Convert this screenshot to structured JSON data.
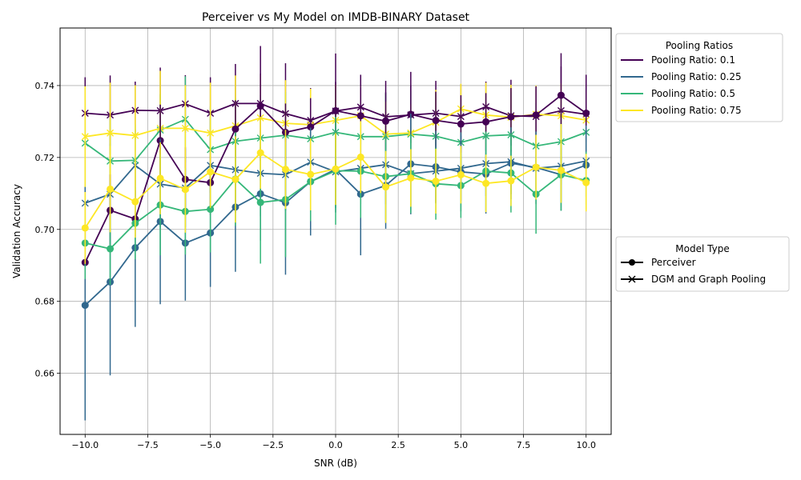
{
  "chart_data": {
    "type": "line",
    "title": "Perceiver vs My Model on IMDB-BINARY Dataset",
    "xlabel": "SNR (dB)",
    "ylabel": "Validation Accuracy",
    "xlim": [
      -11.0,
      11.0
    ],
    "ylim": [
      0.643,
      0.756
    ],
    "xticks": [
      -10,
      -7.5,
      -5,
      -2.5,
      0,
      2.5,
      5,
      7.5,
      10
    ],
    "xtick_labels": [
      "−10.0",
      "−7.5",
      "−5.0",
      "−2.5",
      "0.0",
      "2.5",
      "5.0",
      "7.5",
      "10.0"
    ],
    "yticks": [
      0.66,
      0.68,
      0.7,
      0.72,
      0.74
    ],
    "ytick_labels": [
      "0.66",
      "0.68",
      "0.70",
      "0.72",
      "0.74"
    ],
    "grid": true,
    "x": [
      -10,
      -9,
      -8,
      -7,
      -6,
      -5,
      -4,
      -3,
      -2,
      -1,
      0,
      1,
      2,
      3,
      4,
      5,
      6,
      7,
      8,
      9,
      10
    ],
    "colors": {
      "0.1": "#440154",
      "0.25": "#31688e",
      "0.5": "#35b779",
      "0.75": "#fde725"
    },
    "legend_pooling": {
      "title": "Pooling Ratios",
      "placement": "outside upper right",
      "entries": [
        {
          "label": "Pooling Ratio: 0.1",
          "color": "#440154"
        },
        {
          "label": "Pooling Ratio: 0.25",
          "color": "#31688e"
        },
        {
          "label": "Pooling Ratio: 0.5",
          "color": "#35b779"
        },
        {
          "label": "Pooling Ratio: 0.75",
          "color": "#fde725"
        }
      ]
    },
    "legend_model": {
      "title": "Model Type",
      "placement": "outside center right",
      "entries": [
        {
          "label": "Perceiver",
          "marker": "circle"
        },
        {
          "label": "DGM and Graph Pooling",
          "marker": "x"
        }
      ]
    },
    "series": [
      {
        "model": "DGM and Graph Pooling",
        "ratio": "0.1",
        "marker": "x",
        "values": [
          0.7323,
          0.7318,
          0.7331,
          0.733,
          0.7349,
          0.7323,
          0.735,
          0.735,
          0.7322,
          0.7303,
          0.7329,
          0.734,
          0.7313,
          0.7318,
          0.7323,
          0.7314,
          0.7341,
          0.7316,
          0.7314,
          0.733,
          0.732
        ],
        "err": [
          0.01,
          0.011,
          0.008,
          0.012,
          0.008,
          0.01,
          0.011,
          0.016,
          0.014,
          0.009,
          0.016,
          0.009,
          0.01,
          0.012,
          0.009,
          0.009,
          0.007,
          0.01,
          0.008,
          0.016,
          0.011
        ]
      },
      {
        "model": "DGM and Graph Pooling",
        "ratio": "0.25",
        "marker": "x",
        "values": [
          0.7073,
          0.7098,
          0.7178,
          0.7126,
          0.7115,
          0.7178,
          0.7166,
          0.7156,
          0.7152,
          0.7187,
          0.716,
          0.717,
          0.718,
          0.7155,
          0.7162,
          0.717,
          0.7183,
          0.7188,
          0.717,
          0.7176,
          0.719
        ],
        "err": [
          0.012,
          0.014,
          0.01,
          0.012,
          0.011,
          0.013,
          0.012,
          0.012,
          0.01,
          0.011,
          0.01,
          0.01,
          0.011,
          0.011,
          0.009,
          0.009,
          0.009,
          0.009,
          0.01,
          0.01,
          0.01
        ]
      },
      {
        "model": "DGM and Graph Pooling",
        "ratio": "0.5",
        "marker": "x",
        "values": [
          0.724,
          0.719,
          0.7192,
          0.7276,
          0.7306,
          0.7222,
          0.7245,
          0.7254,
          0.7262,
          0.7252,
          0.727,
          0.7258,
          0.7258,
          0.7265,
          0.7259,
          0.7242,
          0.726,
          0.7263,
          0.7232,
          0.7244,
          0.727
        ],
        "err": [
          0.012,
          0.012,
          0.01,
          0.01,
          0.012,
          0.012,
          0.012,
          0.012,
          0.012,
          0.012,
          0.012,
          0.012,
          0.012,
          0.012,
          0.012,
          0.012,
          0.012,
          0.012,
          0.012,
          0.012,
          0.012
        ]
      },
      {
        "model": "DGM and Graph Pooling",
        "ratio": "0.75",
        "marker": "x",
        "values": [
          0.7258,
          0.7268,
          0.7261,
          0.7281,
          0.7281,
          0.7268,
          0.7288,
          0.731,
          0.7295,
          0.7291,
          0.7303,
          0.7316,
          0.7265,
          0.7268,
          0.7298,
          0.7335,
          0.7318,
          0.7312,
          0.732,
          0.7316,
          0.7304
        ],
        "err": [
          0.014,
          0.014,
          0.014,
          0.016,
          0.012,
          0.014,
          0.014,
          0.012,
          0.012,
          0.01,
          0.01,
          0.008,
          0.009,
          0.008,
          0.009,
          0.007,
          0.009,
          0.009,
          0.008,
          0.009,
          0.008
        ]
      },
      {
        "model": "Perceiver",
        "ratio": "0.1",
        "marker": "circle",
        "values": [
          0.6908,
          0.7053,
          0.7029,
          0.7247,
          0.7139,
          0.713,
          0.7279,
          0.7343,
          0.727,
          0.7285,
          0.733,
          0.7316,
          0.7301,
          0.732,
          0.7303,
          0.7293,
          0.7299,
          0.7313,
          0.7318,
          0.7373,
          0.7323
        ],
        "err": [
          0.01,
          0.01,
          0.008,
          0.01,
          0.009,
          0.009,
          0.008,
          0.009,
          0.008,
          0.008,
          0.008,
          0.008,
          0.008,
          0.008,
          0.008,
          0.008,
          0.008,
          0.008,
          0.008,
          0.008,
          0.008
        ]
      },
      {
        "model": "Perceiver",
        "ratio": "0.25",
        "marker": "circle",
        "values": [
          0.6789,
          0.6854,
          0.6949,
          0.7022,
          0.6962,
          0.699,
          0.7062,
          0.7099,
          0.7074,
          0.7133,
          0.7167,
          0.7098,
          0.7122,
          0.7182,
          0.7174,
          0.716,
          0.7154,
          0.7184,
          0.7172,
          0.7152,
          0.7179
        ],
        "err": [
          0.032,
          0.026,
          0.022,
          0.023,
          0.016,
          0.015,
          0.018,
          0.013,
          0.02,
          0.015,
          0.012,
          0.017,
          0.012,
          0.014,
          0.01,
          0.011,
          0.011,
          0.01,
          0.01,
          0.01,
          0.011
        ]
      },
      {
        "model": "Perceiver",
        "ratio": "0.5",
        "marker": "circle",
        "values": [
          0.6962,
          0.6946,
          0.7017,
          0.7068,
          0.705,
          0.7056,
          0.714,
          0.7075,
          0.7083,
          0.7133,
          0.7163,
          0.7162,
          0.7147,
          0.7155,
          0.7127,
          0.7122,
          0.7162,
          0.7157,
          0.7098,
          0.7152,
          0.7136
        ],
        "err": [
          0.01,
          0.01,
          0.01,
          0.014,
          0.012,
          0.012,
          0.013,
          0.017,
          0.016,
          0.011,
          0.015,
          0.013,
          0.012,
          0.011,
          0.01,
          0.009,
          0.011,
          0.011,
          0.011,
          0.01,
          0.008
        ]
      },
      {
        "model": "Perceiver",
        "ratio": "0.75",
        "marker": "circle",
        "values": [
          0.7004,
          0.7112,
          0.7077,
          0.7142,
          0.7111,
          0.716,
          0.7139,
          0.7213,
          0.7167,
          0.7153,
          0.7168,
          0.7201,
          0.7118,
          0.7143,
          0.7134,
          0.7152,
          0.7128,
          0.7135,
          0.7173,
          0.7164,
          0.713
        ],
        "err": [
          0.01,
          0.012,
          0.01,
          0.01,
          0.012,
          0.01,
          0.012,
          0.01,
          0.011,
          0.01,
          0.01,
          0.01,
          0.01,
          0.008,
          0.009,
          0.008,
          0.008,
          0.007,
          0.009,
          0.009,
          0.008
        ]
      }
    ]
  }
}
